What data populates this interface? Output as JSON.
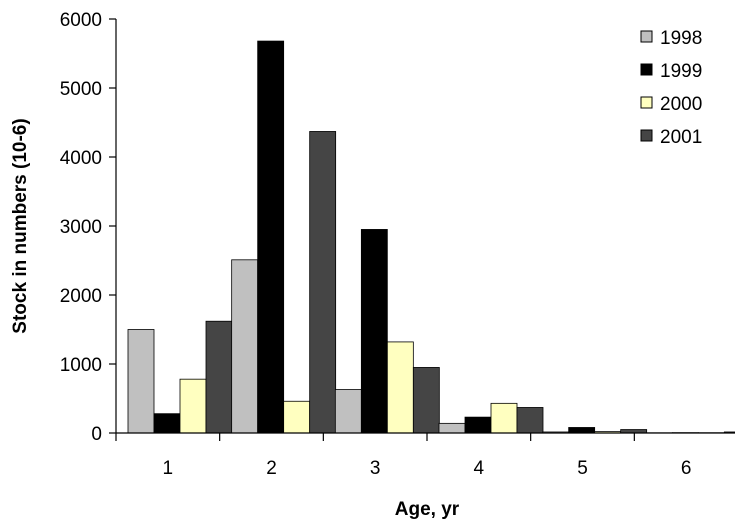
{
  "chart_data": {
    "type": "bar",
    "title": "",
    "xlabel": "Age, yr",
    "ylabel": "Stock in numbers (10-6)",
    "categories": [
      "1",
      "2",
      "3",
      "4",
      "5",
      "6"
    ],
    "ylim": [
      0,
      6000
    ],
    "yticks": [
      0,
      1000,
      2000,
      3000,
      4000,
      5000,
      6000
    ],
    "grid": false,
    "legend_position": "top-right",
    "series": [
      {
        "name": "1998",
        "color": "#c0c0c0",
        "values": [
          1500,
          2510,
          630,
          140,
          15,
          3
        ]
      },
      {
        "name": "1999",
        "color": "#000000",
        "values": [
          280,
          5680,
          2950,
          230,
          80,
          5
        ]
      },
      {
        "name": "2000",
        "color": "#ffffc0",
        "values": [
          780,
          460,
          1320,
          430,
          20,
          4
        ]
      },
      {
        "name": "2001",
        "color": "#454545",
        "values": [
          1620,
          4370,
          950,
          370,
          50,
          15
        ]
      }
    ]
  }
}
